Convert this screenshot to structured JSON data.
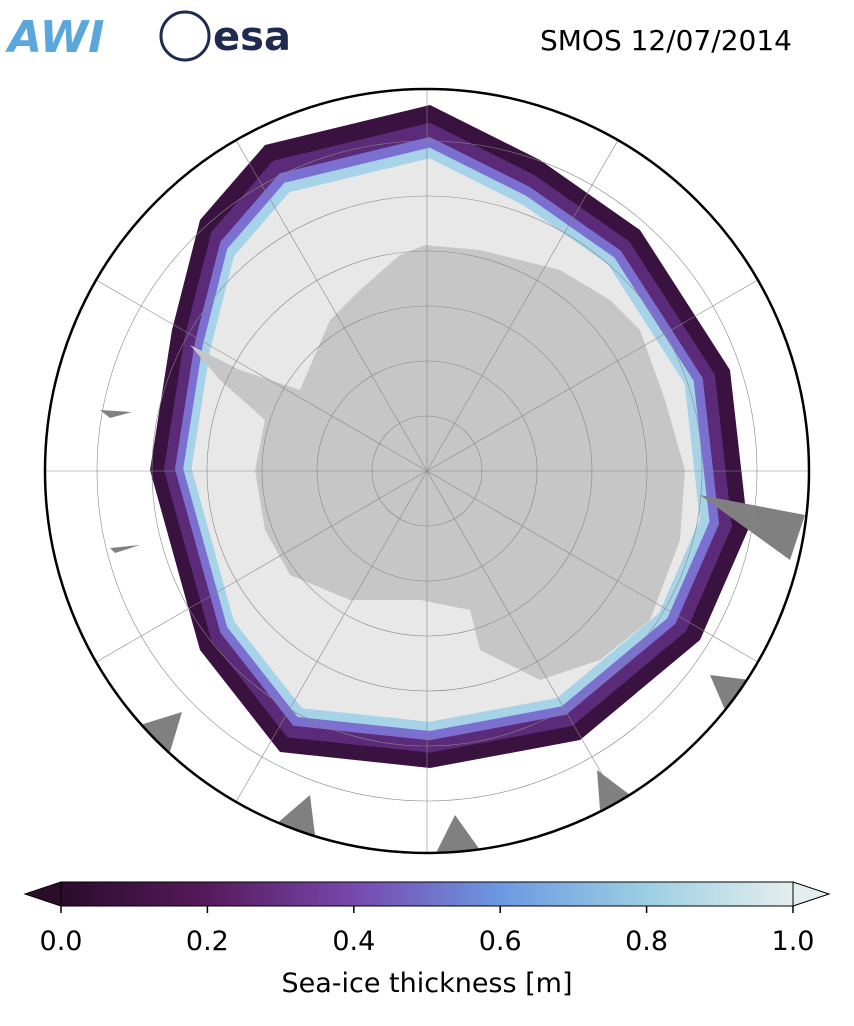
{
  "header": {
    "logo_left": "AWI",
    "logo_right": "esa",
    "title": "SMOS 12/07/2014"
  },
  "colorbar": {
    "label": "Sea-ice thickness [m]",
    "lim": [
      0,
      1
    ],
    "ticks": [
      {
        "value": 0,
        "label": "0.0"
      },
      0.2,
      0.4,
      0.6,
      0.8,
      {
        "value": 1,
        "label": "1.0"
      }
    ]
  }
}
